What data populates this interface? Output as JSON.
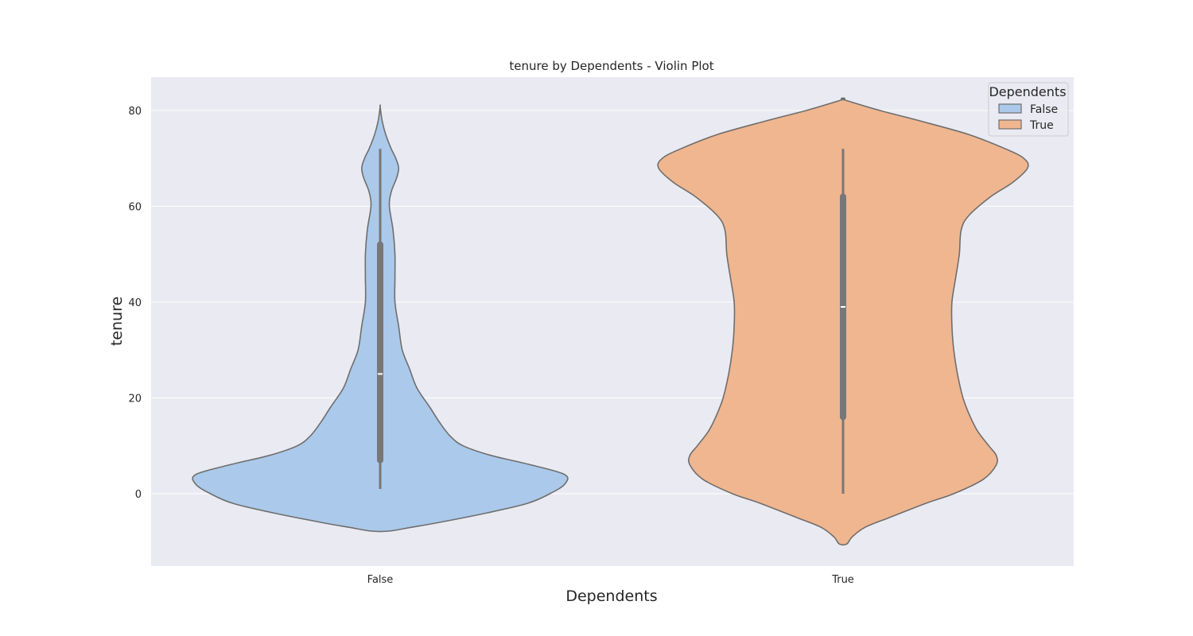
{
  "chart_data": {
    "type": "violin",
    "title": "tenure by Dependents - Violin Plot",
    "xlabel": "Dependents",
    "ylabel": "tenure",
    "categories": [
      "False",
      "True"
    ],
    "ylim": [
      -15,
      87
    ],
    "yticks": [
      0,
      20,
      40,
      60,
      80
    ],
    "grid": true,
    "legend": {
      "title": "Dependents",
      "position": "top-right",
      "entries": [
        "False",
        "True"
      ]
    },
    "colors": {
      "background": "#eaeaf2",
      "grid": "#ffffff",
      "outline": "#6e6e6e",
      "box": "#777777",
      "median": "#ffffff"
    },
    "series": [
      {
        "category": "False",
        "color": "#abc9ea",
        "box": {
          "whisker_low": 1,
          "q1": 7,
          "median": 25,
          "q3": 52,
          "whisker_high": 72
        },
        "density_range": [
          -7.8,
          80.8
        ],
        "density_profile": [
          [
            -7.8,
            0.05
          ],
          [
            -7.0,
            0.17
          ],
          [
            -6.0,
            0.32
          ],
          [
            -4.0,
            0.58
          ],
          [
            -2.0,
            0.8
          ],
          [
            0.0,
            0.92
          ],
          [
            2.0,
            1.0
          ],
          [
            4.0,
            1.0
          ],
          [
            6.0,
            0.82
          ],
          [
            8.0,
            0.6
          ],
          [
            10.0,
            0.45
          ],
          [
            12.0,
            0.38
          ],
          [
            15.0,
            0.32
          ],
          [
            18.0,
            0.27
          ],
          [
            22.0,
            0.2
          ],
          [
            26.0,
            0.16
          ],
          [
            30.0,
            0.12
          ],
          [
            35.0,
            0.1
          ],
          [
            40.0,
            0.08
          ],
          [
            45.0,
            0.08
          ],
          [
            50.0,
            0.08
          ],
          [
            55.0,
            0.07
          ],
          [
            60.0,
            0.05
          ],
          [
            63.0,
            0.06
          ],
          [
            66.0,
            0.09
          ],
          [
            68.0,
            0.1
          ],
          [
            70.0,
            0.085
          ],
          [
            72.0,
            0.06
          ],
          [
            75.0,
            0.03
          ],
          [
            78.0,
            0.01
          ],
          [
            80.8,
            0.0
          ]
        ]
      },
      {
        "category": "True",
        "color": "#f0b690",
        "box": {
          "whisker_low": 0,
          "q1": 16,
          "median": 39,
          "q3": 62,
          "whisker_high": 72
        },
        "density_range": [
          -10.5,
          82.3
        ],
        "density_profile": [
          [
            -10.5,
            0.02
          ],
          [
            -9.0,
            0.05
          ],
          [
            -7.0,
            0.12
          ],
          [
            -5.0,
            0.25
          ],
          [
            -2.0,
            0.45
          ],
          [
            0.0,
            0.6
          ],
          [
            3.0,
            0.76
          ],
          [
            6.0,
            0.83
          ],
          [
            8.0,
            0.83
          ],
          [
            10.0,
            0.79
          ],
          [
            13.0,
            0.73
          ],
          [
            16.0,
            0.69
          ],
          [
            20.0,
            0.65
          ],
          [
            25.0,
            0.62
          ],
          [
            30.0,
            0.6
          ],
          [
            35.0,
            0.59
          ],
          [
            40.0,
            0.59
          ],
          [
            45.0,
            0.61
          ],
          [
            50.0,
            0.63
          ],
          [
            55.0,
            0.64
          ],
          [
            58.0,
            0.68
          ],
          [
            62.0,
            0.8
          ],
          [
            65.0,
            0.92
          ],
          [
            68.0,
            1.0
          ],
          [
            70.0,
            0.98
          ],
          [
            72.0,
            0.88
          ],
          [
            75.0,
            0.68
          ],
          [
            78.0,
            0.4
          ],
          [
            80.0,
            0.2
          ],
          [
            82.3,
            0.0
          ]
        ]
      }
    ]
  }
}
